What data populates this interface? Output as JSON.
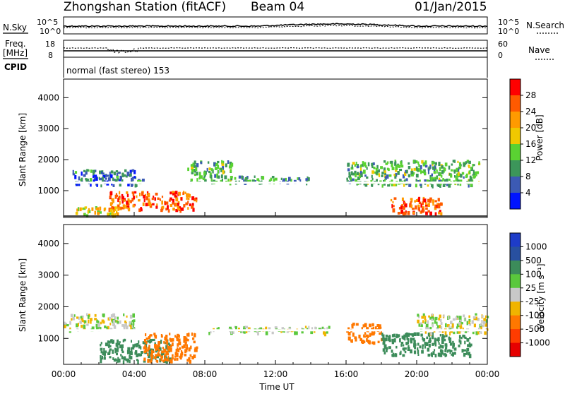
{
  "header": {
    "station": "Zhongshan Station (fitACF)",
    "beam": "Beam 04",
    "date": "01/Jan/2015"
  },
  "top_panels": {
    "nsky_label": "N.Sky",
    "nsky_ticks": [
      "10^5",
      "10^0"
    ],
    "nsearch_label": "N.Search",
    "nsearch_ticks": [
      "10^5",
      "10^0"
    ],
    "freq_label": "Freq.",
    "freq_unit": "[MHz]",
    "freq_ticks": [
      "18",
      "8"
    ],
    "nave_label": "Nave",
    "nave_ticks": [
      "60",
      "0"
    ],
    "cpid_label": "CPID",
    "cpid_text": "normal (fast stereo) 153"
  },
  "x_axis": {
    "label": "Time UT",
    "ticks": [
      "00:00",
      "04:00",
      "08:00",
      "12:00",
      "16:00",
      "20:00",
      "00:00"
    ]
  },
  "power_panel": {
    "ylabel": "Slant Range [km]",
    "yticks": [
      "4000",
      "3000",
      "2000",
      "1000"
    ],
    "colorbar_title": "Power [dB]",
    "colorbar_labels": [
      "28",
      "24",
      "20",
      "16",
      "12",
      "8",
      "4"
    ],
    "colors": [
      "#ff0000",
      "#ff5a00",
      "#ff9a00",
      "#f0c800",
      "#5ad232",
      "#3c965a",
      "#3c5ab4",
      "#0014ff"
    ]
  },
  "velocity_panel": {
    "ylabel": "Slant Range [km]",
    "yticks": [
      "4000",
      "3000",
      "2000",
      "1000"
    ],
    "colorbar_title": "Velocity [m s⁻¹]",
    "colorbar_labels": [
      "1000",
      "500",
      "100",
      "25",
      "-25",
      "-100",
      "-500",
      "-1000"
    ],
    "colors": [
      "#1e3cc8",
      "#2850a0",
      "#3c8c5a",
      "#5ac83c",
      "#c8c8c8",
      "#f0b400",
      "#ff7800",
      "#ff3c00",
      "#e60000"
    ]
  },
  "chart_data": [
    {
      "type": "heatmap",
      "title": "Power",
      "x_range": [
        "00:00",
        "24:00"
      ],
      "y_range_km": [
        180,
        4600
      ],
      "regions": [
        {
          "t_start": 0.5,
          "t_end": 4.5,
          "r_min": 1200,
          "r_max": 1700,
          "value_db": 8
        },
        {
          "t_start": 2.5,
          "t_end": 7.5,
          "r_min": 400,
          "r_max": 1000,
          "value_db": 26
        },
        {
          "t_start": 0.5,
          "t_end": 3.0,
          "r_min": 200,
          "r_max": 500,
          "value_db": 18
        },
        {
          "t_start": 7.0,
          "t_end": 9.5,
          "r_min": 1300,
          "r_max": 2000,
          "value_db": 12
        },
        {
          "t_start": 9.5,
          "t_end": 14.0,
          "r_min": 1300,
          "r_max": 1500,
          "value_db": 10
        },
        {
          "t_start": 16.0,
          "t_end": 23.5,
          "r_min": 1200,
          "r_max": 2000,
          "value_db": 12
        },
        {
          "t_start": 18.5,
          "t_end": 21.5,
          "r_min": 300,
          "r_max": 800,
          "value_db": 26
        }
      ]
    },
    {
      "type": "heatmap",
      "title": "Velocity",
      "x_range": [
        "00:00",
        "24:00"
      ],
      "y_range_km": [
        180,
        4600
      ],
      "regions": [
        {
          "t_start": 0.0,
          "t_end": 4.0,
          "r_min": 1300,
          "r_max": 1800,
          "value_ms": 0
        },
        {
          "t_start": 2.0,
          "t_end": 6.0,
          "r_min": 300,
          "r_max": 1000,
          "value_ms": 200
        },
        {
          "t_start": 4.5,
          "t_end": 7.5,
          "r_min": 300,
          "r_max": 1200,
          "value_ms": -300
        },
        {
          "t_start": 8.0,
          "t_end": 15.0,
          "r_min": 1200,
          "r_max": 1400,
          "value_ms": 0
        },
        {
          "t_start": 16.0,
          "t_end": 18.0,
          "r_min": 900,
          "r_max": 1500,
          "value_ms": -300
        },
        {
          "t_start": 18.0,
          "t_end": 23.0,
          "r_min": 500,
          "r_max": 1200,
          "value_ms": 200
        },
        {
          "t_start": 20.0,
          "t_end": 24.0,
          "r_min": 1200,
          "r_max": 1800,
          "value_ms": 0
        }
      ]
    }
  ]
}
